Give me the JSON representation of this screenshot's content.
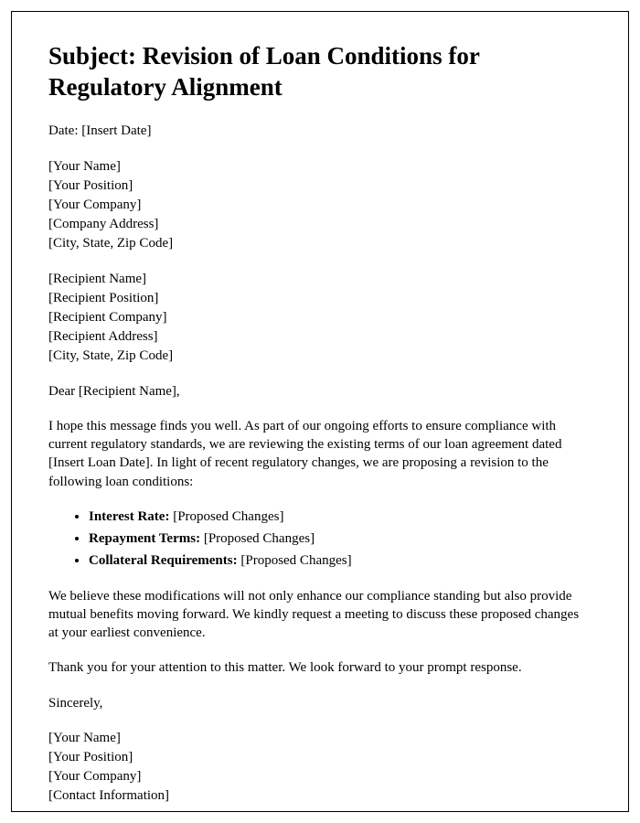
{
  "subject_prefix": "Subject: ",
  "subject": "Revision of Loan Conditions for Regulatory Alignment",
  "date_label": "Date: ",
  "date_value": "[Insert Date]",
  "sender": {
    "name": "[Your Name]",
    "position": "[Your Position]",
    "company": "[Your Company]",
    "address": "[Company Address]",
    "city_state_zip": "[City, State, Zip Code]"
  },
  "recipient": {
    "name": "[Recipient Name]",
    "position": "[Recipient Position]",
    "company": "[Recipient Company]",
    "address": "[Recipient Address]",
    "city_state_zip": "[City, State, Zip Code]"
  },
  "salutation": "Dear [Recipient Name],",
  "intro_paragraph": "I hope this message finds you well. As part of our ongoing efforts to ensure compliance with current regulatory standards, we are reviewing the existing terms of our loan agreement dated [Insert Loan Date]. In light of recent regulatory changes, we are proposing a revision to the following loan conditions:",
  "conditions": [
    {
      "label": "Interest Rate:",
      "value": " [Proposed Changes]"
    },
    {
      "label": "Repayment Terms:",
      "value": " [Proposed Changes]"
    },
    {
      "label": "Collateral Requirements:",
      "value": " [Proposed Changes]"
    }
  ],
  "body_paragraph_2": "We believe these modifications will not only enhance our compliance standing but also provide mutual benefits moving forward. We kindly request a meeting to discuss these proposed changes at your earliest convenience.",
  "body_paragraph_3": "Thank you for your attention to this matter. We look forward to your prompt response.",
  "closing": "Sincerely,",
  "signature": {
    "name": "[Your Name]",
    "position": "[Your Position]",
    "company": "[Your Company]",
    "contact": "[Contact Information]"
  },
  "colors": {
    "text": "#000000",
    "background": "#ffffff",
    "border": "#000000"
  }
}
